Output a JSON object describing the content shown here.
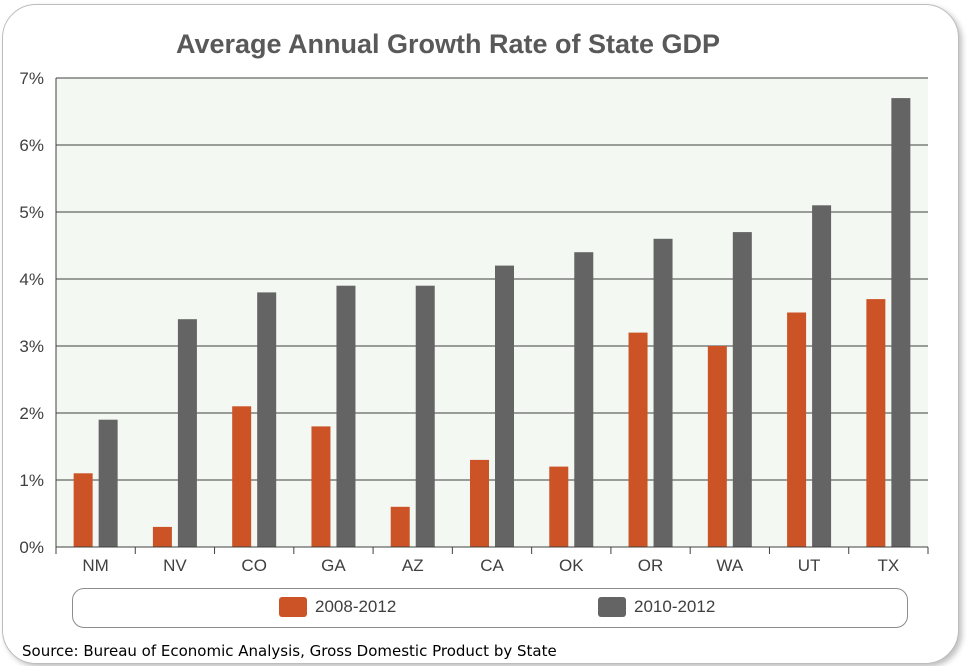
{
  "chart_data": {
    "type": "bar",
    "title": "Average Annual Growth Rate of State GDP",
    "categories": [
      "NM",
      "NV",
      "CO",
      "GA",
      "AZ",
      "CA",
      "OK",
      "OR",
      "WA",
      "UT",
      "TX"
    ],
    "series": [
      {
        "name": "2008-2012",
        "color": "#cc5325",
        "values": [
          1.1,
          0.3,
          2.1,
          1.8,
          0.6,
          1.3,
          1.2,
          3.2,
          3.0,
          3.5,
          3.7
        ]
      },
      {
        "name": "2010-2012",
        "color": "#646464",
        "values": [
          1.9,
          3.4,
          3.8,
          3.9,
          3.9,
          4.2,
          4.4,
          4.6,
          4.7,
          5.1,
          6.7
        ]
      }
    ],
    "y_ticks": [
      "0%",
      "1%",
      "2%",
      "3%",
      "4%",
      "5%",
      "6%",
      "7%"
    ],
    "ylim": [
      0,
      7
    ],
    "grid": true,
    "legend_position": "bottom",
    "source": "Source: Bureau of Economic Analysis, Gross Domestic Product by State"
  }
}
